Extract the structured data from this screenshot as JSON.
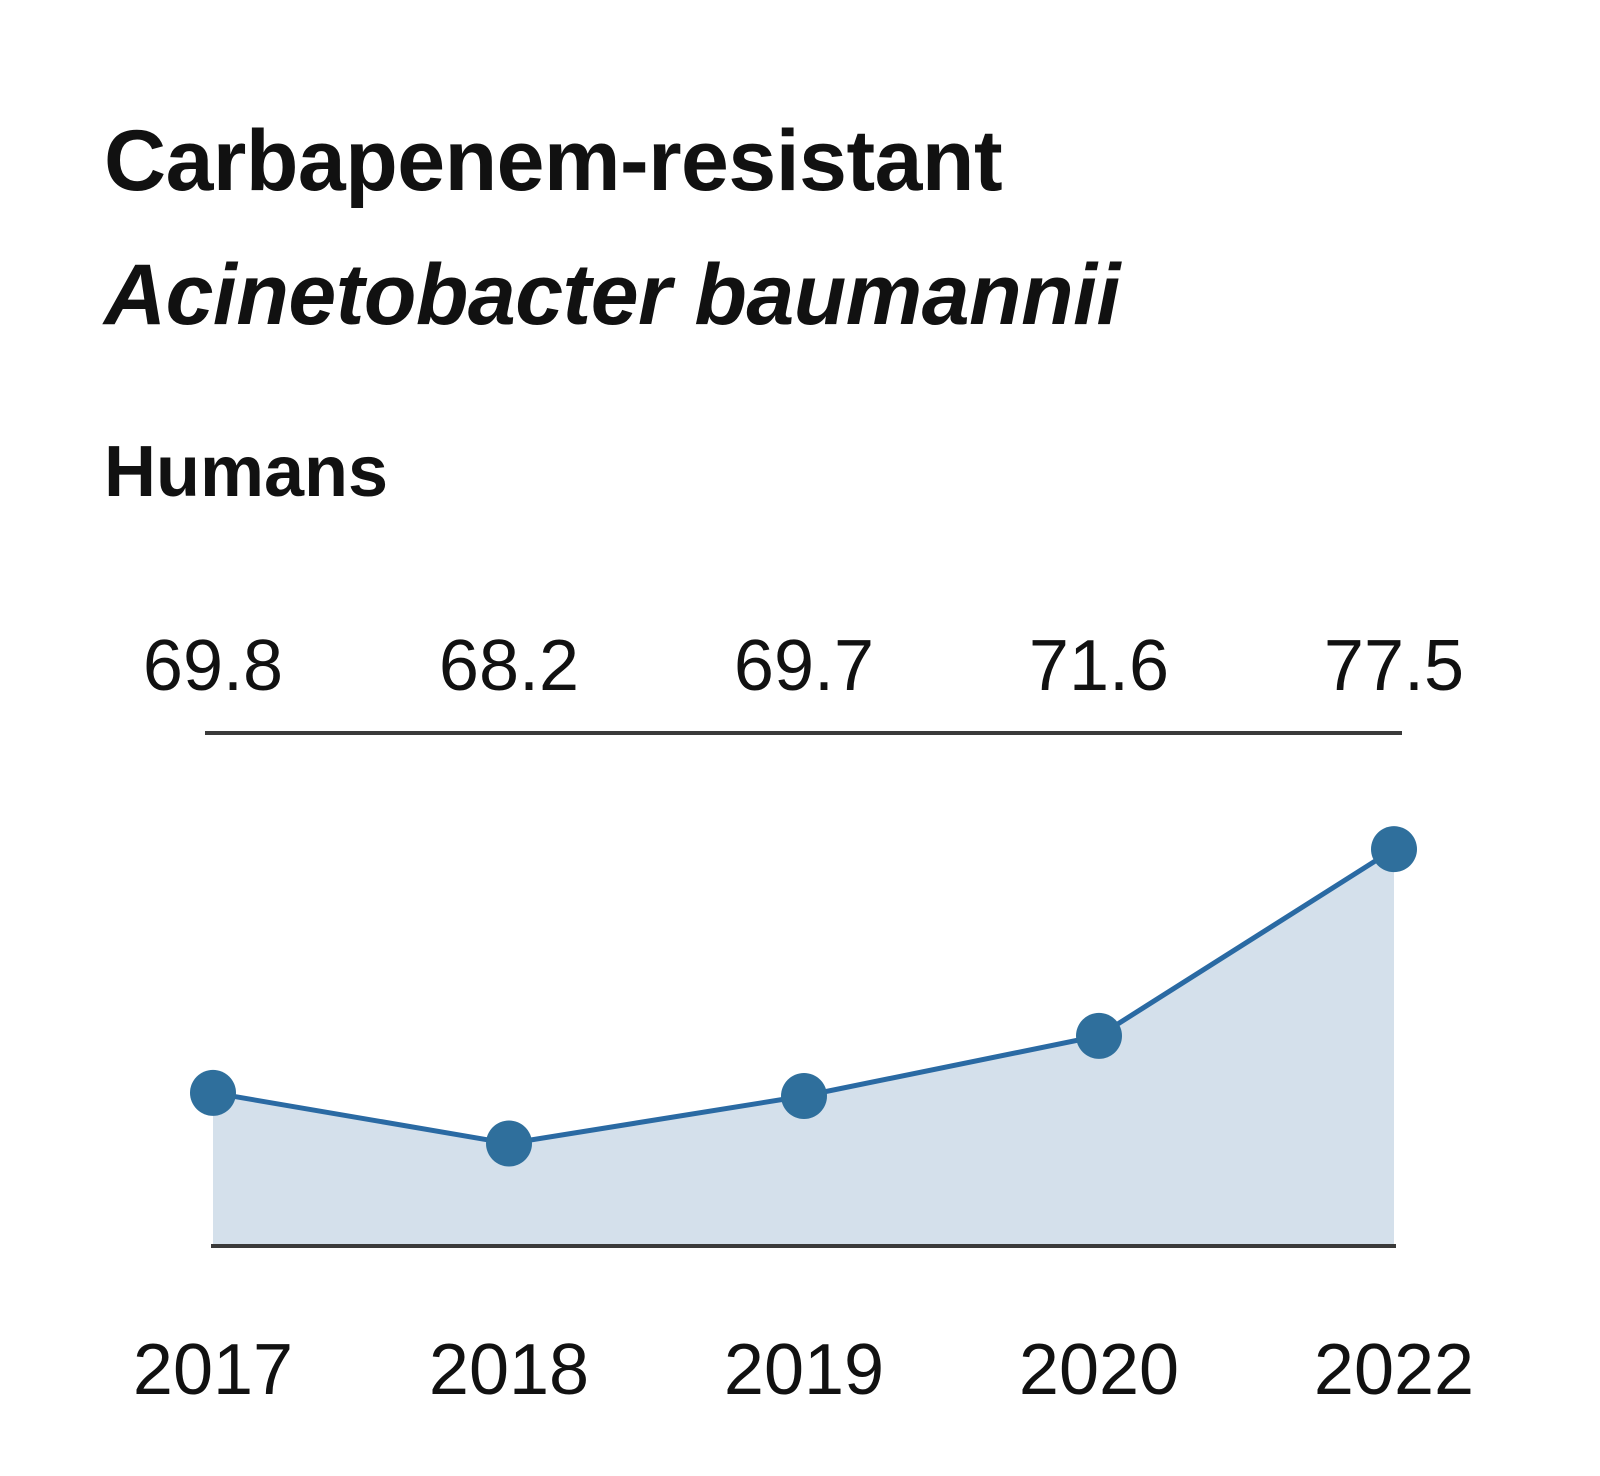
{
  "title_line1": "Carbapenem-resistant",
  "title_line2": "Acinetobacter baumannii",
  "subtitle": "Humans",
  "colors": {
    "line": "#2a6aa3",
    "marker": "#2f6f9c",
    "fill": "#d4e0eb",
    "rule": "#3a3a3a"
  },
  "chart_data": {
    "type": "area",
    "categories": [
      "2017",
      "2018",
      "2019",
      "2020",
      "2022"
    ],
    "values": [
      69.8,
      68.2,
      69.7,
      71.6,
      77.5
    ],
    "value_labels": [
      "69.8",
      "68.2",
      "69.7",
      "71.6",
      "77.5"
    ],
    "title": "Carbapenem-resistant Acinetobacter baumannii",
    "subtitle": "Humans",
    "xlabel": "",
    "ylabel": "",
    "grid": false,
    "markers": true
  }
}
